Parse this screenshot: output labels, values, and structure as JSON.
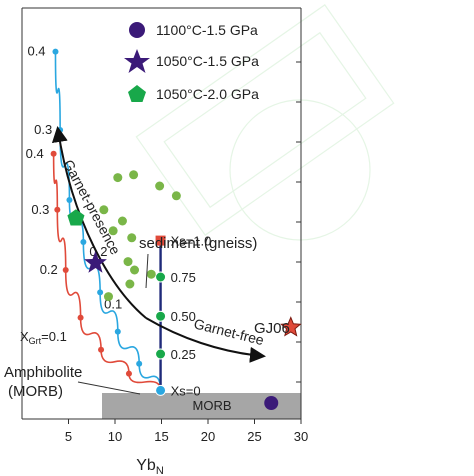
{
  "chart_data": {
    "type": "scatter",
    "xlabel": "Yb",
    "xlabel_subscript": "N",
    "ylabel": "",
    "xlim": [
      0,
      30
    ],
    "xticks": [
      5,
      10,
      15,
      20,
      25,
      30
    ],
    "legend_position": "top-right",
    "grid": false,
    "legend": [
      {
        "label": "1100°C-1.5 GPa",
        "marker": "circle",
        "color": "#3b1a78"
      },
      {
        "label": "1050°C-1.5 GPa",
        "marker": "star",
        "color": "#3b1a78"
      },
      {
        "label": "1050°C-2.0 GPa",
        "marker": "pentagon",
        "color": "#18a84a"
      }
    ],
    "series": [
      {
        "name": "",
        "marker": "circle",
        "color": "#3b1a78",
        "points": [
          {
            "x": 26.8,
            "y": -0.05
          }
        ]
      },
      {
        "name": "",
        "marker": "star",
        "color": "#3b1a78",
        "points": [
          {
            "x": 7.9,
            "y": 0.95
          }
        ]
      },
      {
        "name": "",
        "marker": "pentagon",
        "color": "#18a84a",
        "points": [
          {
            "x": 5.8,
            "y": 1.27
          }
        ]
      },
      {
        "name": "",
        "marker": "circle",
        "color": "#7ab648",
        "points": [
          {
            "x": 10.3,
            "y": 1.56
          },
          {
            "x": 12.0,
            "y": 1.58
          },
          {
            "x": 14.8,
            "y": 1.5
          },
          {
            "x": 16.6,
            "y": 1.43
          },
          {
            "x": 8.8,
            "y": 1.33
          },
          {
            "x": 10.8,
            "y": 1.25
          },
          {
            "x": 9.8,
            "y": 1.18
          },
          {
            "x": 11.8,
            "y": 1.13
          },
          {
            "x": 11.4,
            "y": 0.96
          },
          {
            "x": 12.1,
            "y": 0.9
          },
          {
            "x": 13.9,
            "y": 0.87
          },
          {
            "x": 11.6,
            "y": 0.8
          },
          {
            "x": 9.3,
            "y": 0.71
          }
        ]
      }
    ],
    "mixing_curves": [
      {
        "name": "",
        "color": "#2aa7e0",
        "points": [
          {
            "x": 3.6,
            "y": 2.46
          },
          {
            "x": 4.1,
            "y": 1.9
          },
          {
            "x": 5.1,
            "y": 1.4
          },
          {
            "x": 6.6,
            "y": 1.1
          },
          {
            "x": 8.4,
            "y": 0.74
          },
          {
            "x": 10.3,
            "y": 0.46
          },
          {
            "x": 12.6,
            "y": 0.23
          },
          {
            "x": 14.9,
            "y": 0.04
          }
        ],
        "labels": [
          "0.4",
          "0.3",
          "0.2",
          "0.1"
        ]
      },
      {
        "name": "",
        "color": "#e04a3a",
        "points": [
          {
            "x": 3.4,
            "y": 1.73
          },
          {
            "x": 3.8,
            "y": 1.33
          },
          {
            "x": 4.7,
            "y": 0.9
          },
          {
            "x": 6.3,
            "y": 0.56
          },
          {
            "x": 8.5,
            "y": 0.33
          },
          {
            "x": 11.5,
            "y": 0.16
          },
          {
            "x": 14.9,
            "y": 0.04
          }
        ],
        "labels": [
          "0.4",
          "0.3",
          "0.2",
          "XGrt=0.1"
        ]
      }
    ],
    "sediment_mixing_line": {
      "color": "#1f2a7a",
      "points": [
        {
          "x": 14.9,
          "y": 0.04,
          "label": "Xs=0",
          "marker_color": "#2aa7e0"
        },
        {
          "x": 14.9,
          "y": 0.3,
          "label": "0.25",
          "marker_color": "#18a84a"
        },
        {
          "x": 14.9,
          "y": 0.57,
          "label": "0.50",
          "marker_color": "#18a84a"
        },
        {
          "x": 14.9,
          "y": 0.85,
          "label": "0.75",
          "marker_color": "#18a84a"
        },
        {
          "x": 14.9,
          "y": 1.11,
          "label": "Xs=1.0",
          "marker_color": "#e04a3a",
          "marker": "square"
        }
      ]
    },
    "reference_points": [
      {
        "label": "GJ06",
        "x": 28.9,
        "y": 0.49,
        "marker": "star",
        "color": "#e04a3a"
      }
    ],
    "arrows": [
      {
        "label": "Garnet-presence",
        "color": "#111111"
      },
      {
        "label": "Garnet-free",
        "color": "#111111"
      }
    ],
    "annotations": {
      "sediment": "sediment (gneiss)",
      "amphibolite_line1": "Amphibolite",
      "amphibolite_line2": "(MORB)",
      "morb_band": "MORB",
      "xgrt_prefix": "X",
      "xgrt_sub": "Grt",
      "xgrt_suffix": "=0.1"
    }
  }
}
